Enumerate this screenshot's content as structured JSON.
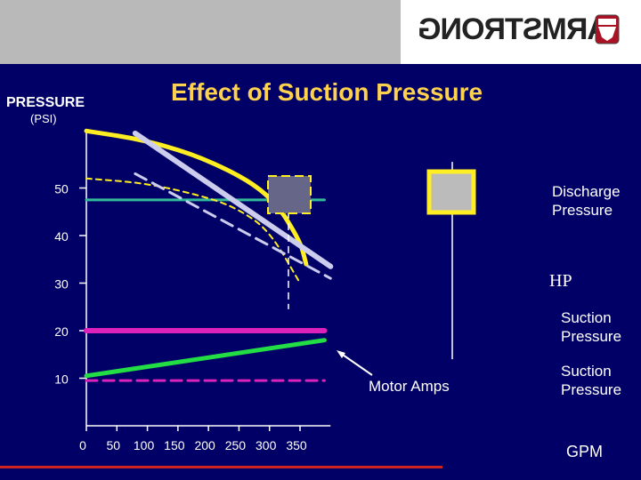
{
  "header": {
    "logo_text": "ARMSTRONG"
  },
  "title": "Effect of Suction Pressure",
  "y_label": "PRESSURE",
  "y_unit": "(PSI)",
  "x_unit": "GPM",
  "colors": {
    "discharge": "#33bb99",
    "suction": "#dd22bb",
    "motor_amps": "#22dd44",
    "pump_curve": "#ffee22",
    "hp": "#ccccee",
    "title": "#ffd24d"
  },
  "labels": {
    "discharge": "Discharge\nPressure",
    "hp": "HP",
    "suction_1": "Suction\nPressure",
    "suction_2": "Suction\nPressure",
    "motor_amps": "Motor Amps"
  },
  "chart_data": {
    "type": "line",
    "title": "Effect of Suction Pressure",
    "ylabel": "PRESSURE (PSI)",
    "xlabel": "GPM",
    "y_ticks": [
      10,
      20,
      30,
      40,
      50
    ],
    "x_ticks": [
      0,
      50,
      100,
      150,
      200,
      250,
      300,
      350
    ],
    "xlim": [
      0,
      350
    ],
    "ylim": [
      0,
      60
    ],
    "series": [
      {
        "name": "Discharge Pressure",
        "style": "solid",
        "x": [
          0,
          390
        ],
        "y": [
          47.5,
          47.5
        ]
      },
      {
        "name": "Suction Pressure",
        "style": "solid",
        "x": [
          0,
          390
        ],
        "y": [
          20,
          20
        ]
      },
      {
        "name": "Suction Pressure",
        "style": "dashed",
        "x": [
          0,
          390
        ],
        "y": [
          9.5,
          9.5
        ]
      },
      {
        "name": "Motor Amps",
        "style": "solid",
        "x": [
          0,
          390
        ],
        "y": [
          10.5,
          18
        ]
      },
      {
        "name": "",
        "style": "solid",
        "x": [
          0,
          100,
          200,
          300,
          350,
          360
        ],
        "y": [
          62,
          60,
          56,
          49,
          39,
          34
        ]
      },
      {
        "name": "",
        "style": "dashed",
        "x": [
          0,
          100,
          200,
          250,
          300,
          350
        ],
        "y": [
          52,
          51,
          48,
          45.5,
          41,
          30
        ]
      },
      {
        "name": "HP",
        "style": "solid",
        "x": [
          80,
          400
        ],
        "y": [
          61.5,
          33.5
        ]
      },
      {
        "name": "",
        "style": "dashed",
        "x": [
          80,
          400
        ],
        "y": [
          53,
          31
        ]
      }
    ]
  }
}
